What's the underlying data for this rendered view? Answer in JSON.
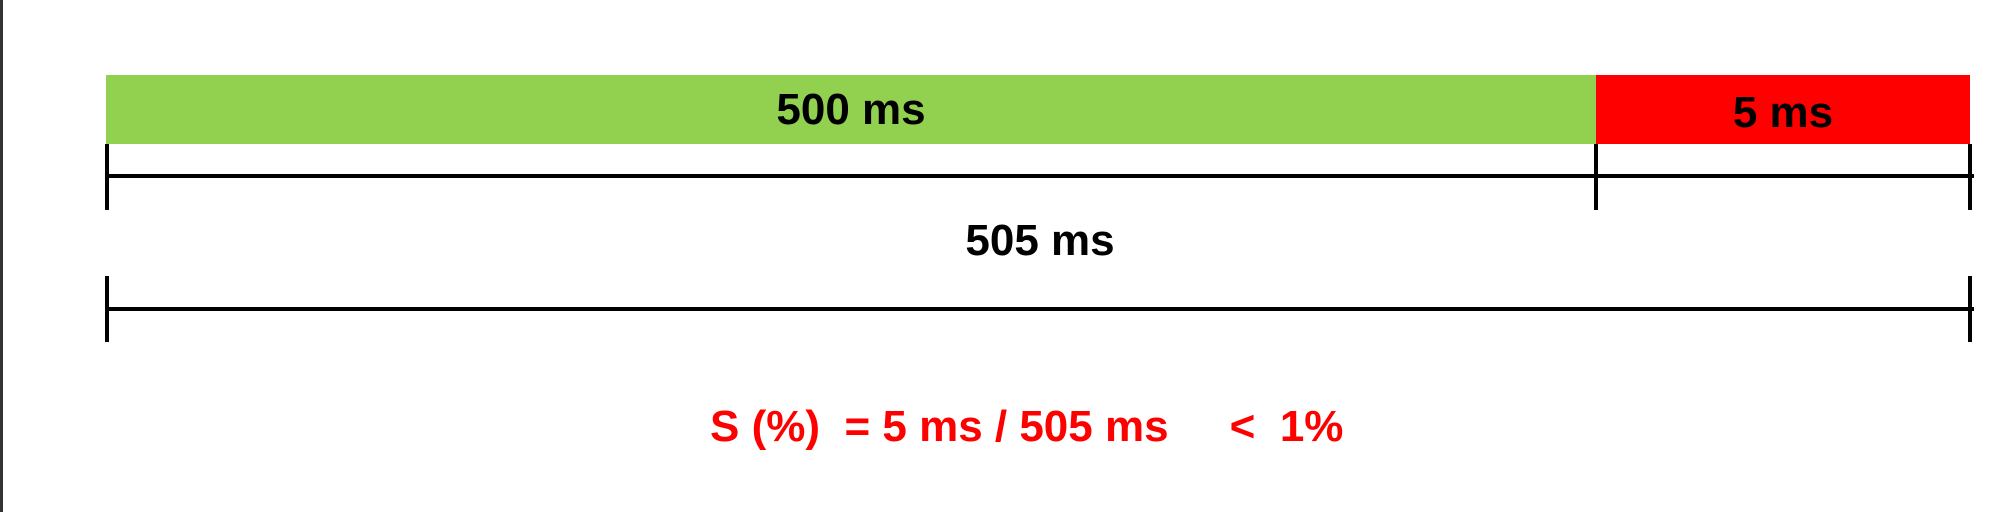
{
  "segments": [
    {
      "label": "500 ms",
      "value_ms": 500,
      "color": "#92d050"
    },
    {
      "label": "5 ms",
      "value_ms": 5,
      "color": "#ff0000"
    }
  ],
  "total": {
    "label": "505 ms",
    "value_ms": 505
  },
  "formula": {
    "text": "S (%)  = 5 ms / 505 ms     <  1%",
    "color": "#ff0000"
  }
}
